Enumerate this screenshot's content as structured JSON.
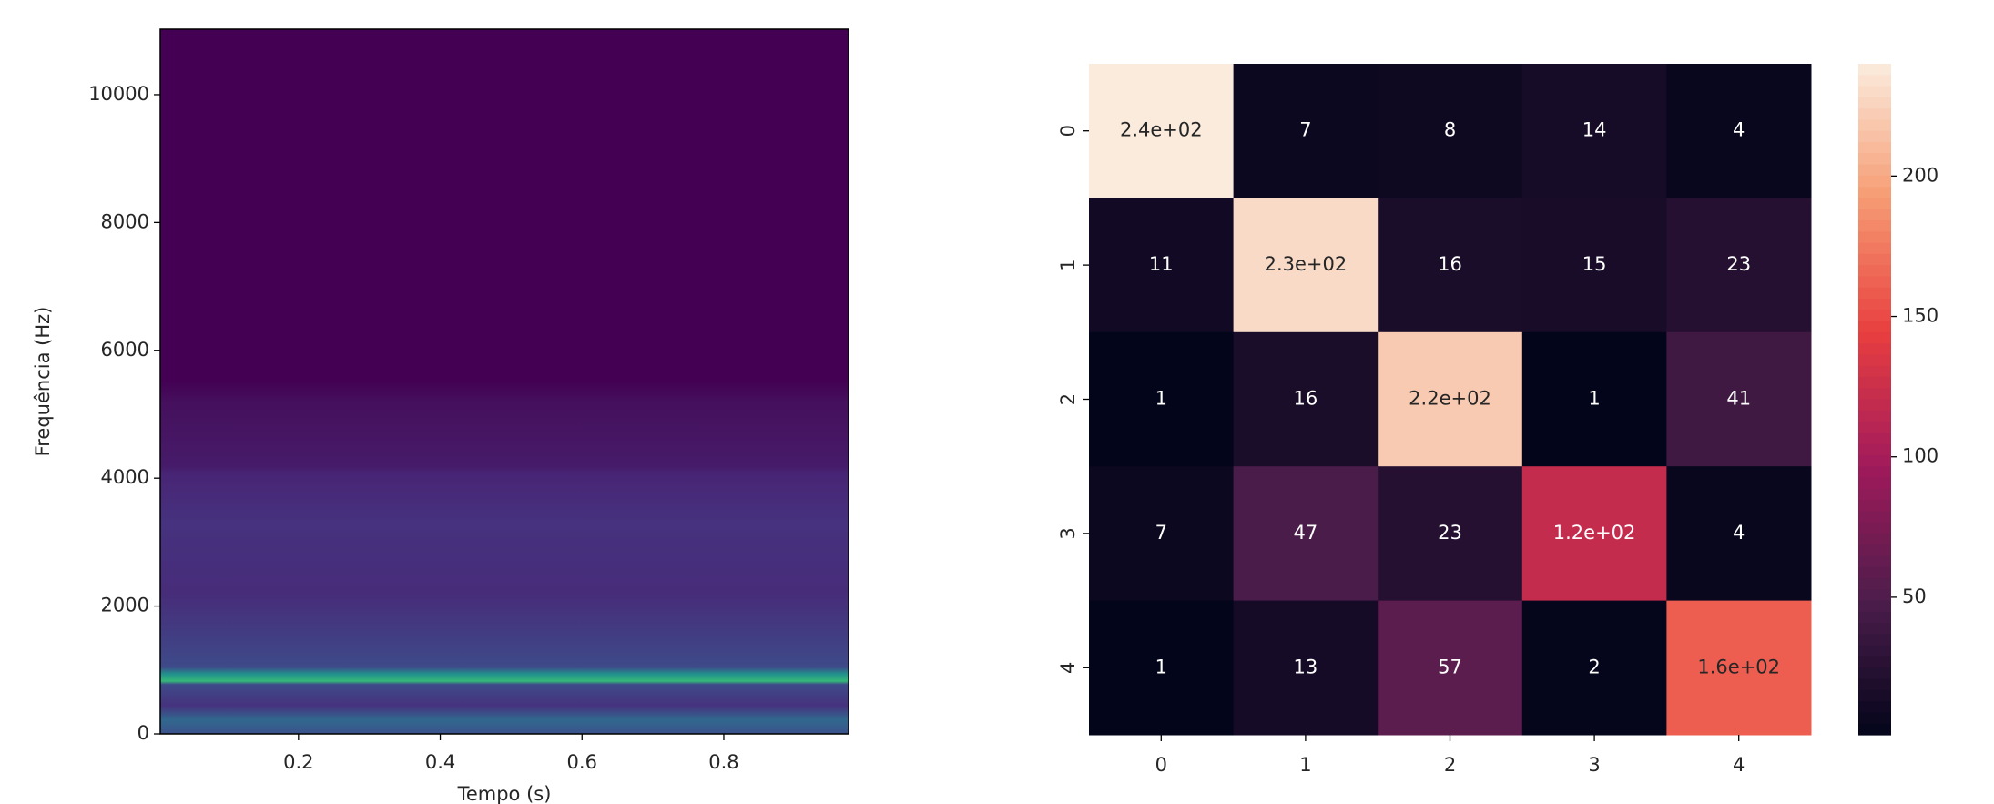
{
  "chart_data": [
    {
      "type": "spectrogram",
      "xlabel": "Tempo (s)",
      "ylabel": "Frequência (Hz)",
      "xlim": [
        0.005,
        0.976
      ],
      "ylim": [
        0,
        11025
      ],
      "xticks": [
        0.2,
        0.4,
        0.6,
        0.8
      ],
      "yticks": [
        0,
        2000,
        4000,
        6000,
        8000,
        10000
      ],
      "colormap": "viridis"
    },
    {
      "type": "heatmap",
      "categories": [
        "0",
        "1",
        "2",
        "3",
        "4"
      ],
      "values": [
        [
          240,
          7,
          8,
          14,
          4
        ],
        [
          11,
          230,
          16,
          15,
          23
        ],
        [
          1,
          16,
          220,
          1,
          41
        ],
        [
          7,
          47,
          23,
          120,
          4
        ],
        [
          1,
          13,
          57,
          2,
          160
        ]
      ],
      "value_labels": [
        [
          "2.4e+02",
          "7",
          "8",
          "14",
          "4"
        ],
        [
          "11",
          "2.3e+02",
          "16",
          "15",
          "23"
        ],
        [
          "1",
          "16",
          "2.2e+02",
          "1",
          "41"
        ],
        [
          "7",
          "47",
          "23",
          "1.2e+02",
          "4"
        ],
        [
          "1",
          "13",
          "57",
          "2",
          "1.6e+02"
        ]
      ],
      "colormap": "rocket",
      "colorbar_lim": [
        1,
        240
      ],
      "colorbar_ticks": [
        50,
        100,
        150,
        200
      ]
    }
  ]
}
